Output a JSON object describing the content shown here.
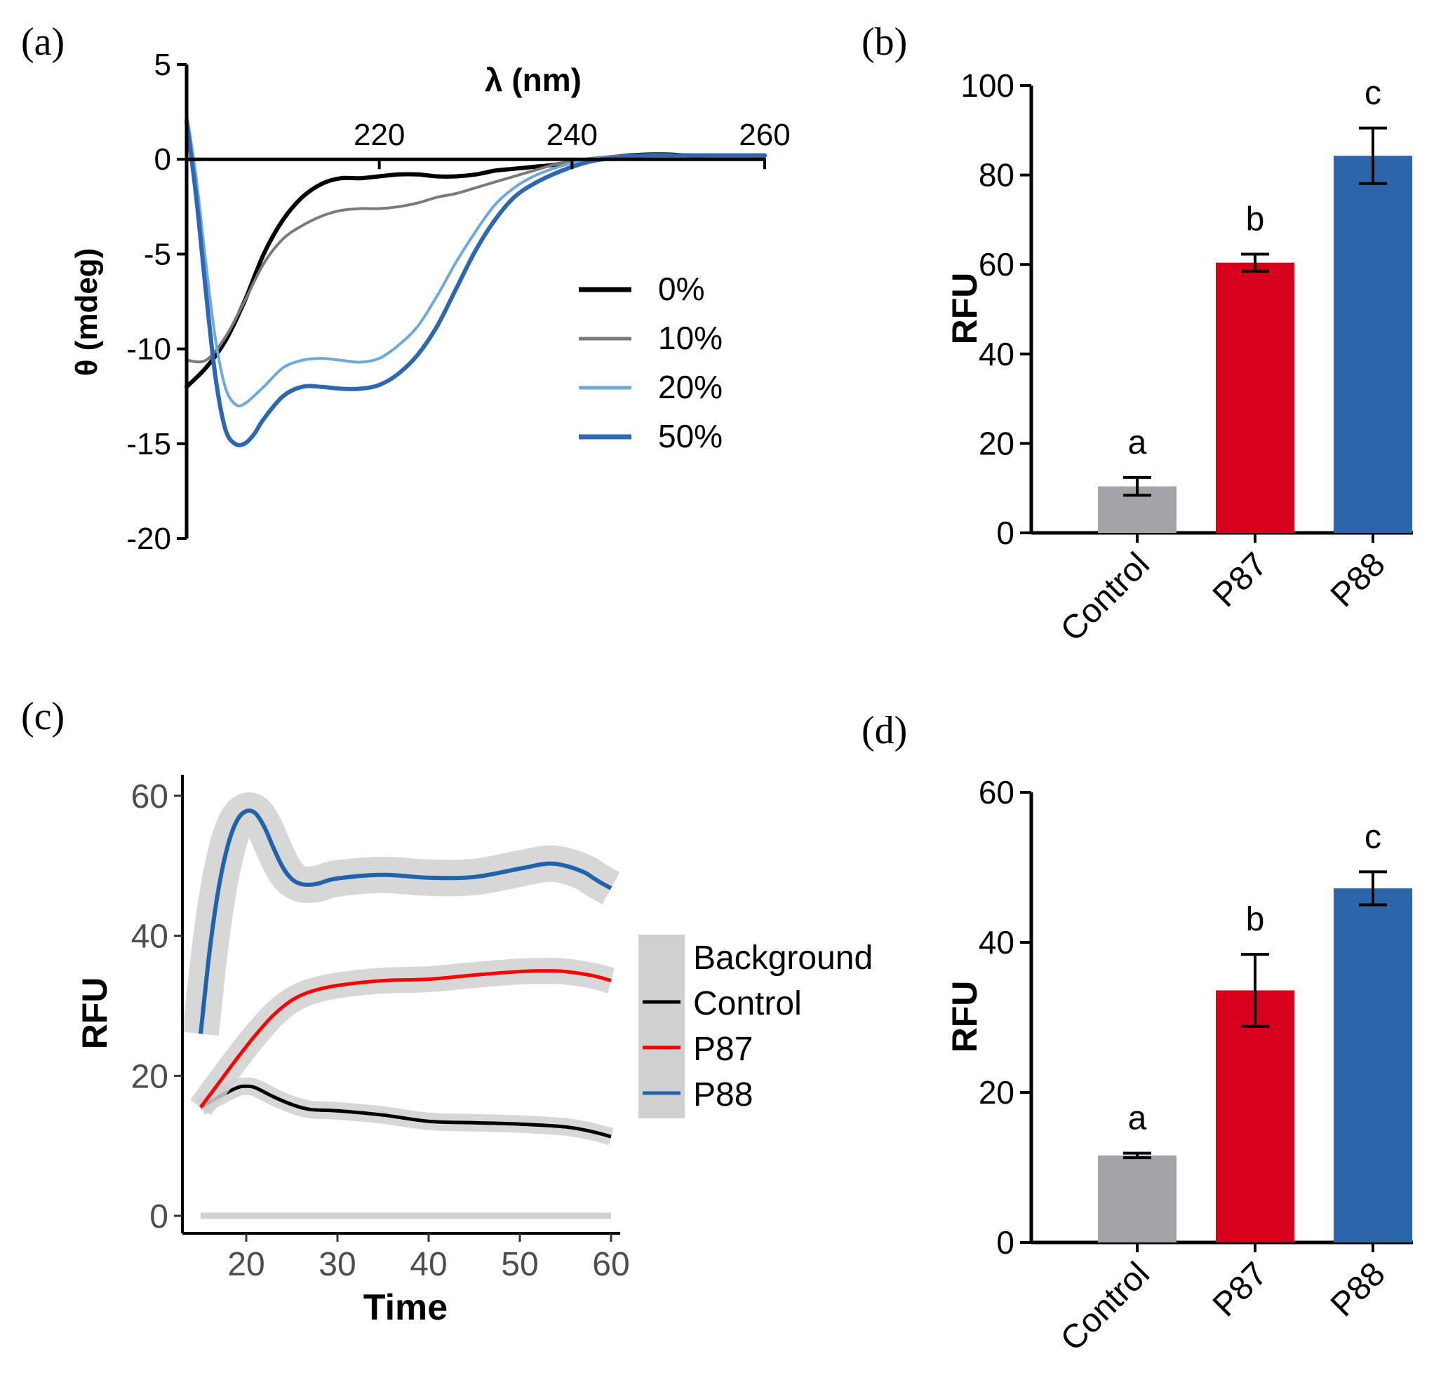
{
  "figure_title": "Four-panel figure: CD spectra and RFU measurements",
  "colors": {
    "black": "#000000",
    "gray_line": "#7a7a7a",
    "light_blue": "#6fa8dc",
    "dark_blue": "#2e67b1",
    "bar_gray": "#a3a3a8",
    "bar_red": "#d7001a",
    "bar_blue": "#2c66aa",
    "ribbon": "#d0d0d0",
    "ggplot_red": "#ff0000",
    "ggplot_blue": "#1f63ad",
    "axis_gray": "#4d4d4d"
  },
  "chart_data": [
    {
      "panel": "a",
      "panel_label": "(a)",
      "type": "line",
      "xlabel": "λ (nm)",
      "ylabel": "θ (mdeg)",
      "xlim": [
        200,
        260
      ],
      "ylim": [
        -20,
        5
      ],
      "xticks": [
        220,
        240,
        260
      ],
      "xtick_labels": [
        "220",
        "240",
        "260"
      ],
      "yticks": [
        5,
        0,
        -5,
        -10,
        -15,
        -20
      ],
      "ytick_labels": [
        "5",
        "0",
        "-5",
        "-10",
        "-15",
        "-20"
      ],
      "legend_position": "center-right",
      "series": [
        {
          "name": "0%",
          "color": "#000000",
          "width": 6,
          "x": [
            200,
            202,
            204,
            206,
            208,
            210,
            212,
            214,
            216,
            218,
            220,
            222,
            224,
            226,
            228,
            230,
            232,
            234,
            236,
            238,
            240,
            242,
            244,
            246,
            248,
            250,
            252,
            254,
            256,
            258,
            260
          ],
          "y": [
            -12.0,
            -11.0,
            -9.6,
            -7.5,
            -5.0,
            -3.2,
            -2.0,
            -1.3,
            -1.0,
            -1.0,
            -0.9,
            -0.8,
            -0.8,
            -0.9,
            -0.9,
            -0.8,
            -0.6,
            -0.5,
            -0.4,
            -0.3,
            -0.15,
            -0.05,
            0.1,
            0.2,
            0.25,
            0.25,
            0.2,
            0.2,
            0.2,
            0.2,
            0.2
          ]
        },
        {
          "name": "10%",
          "color": "#7a7a7a",
          "width": 4,
          "x": [
            200,
            202,
            204,
            206,
            208,
            210,
            212,
            214,
            216,
            218,
            220,
            222,
            224,
            226,
            228,
            230,
            232,
            234,
            236,
            238,
            240,
            242,
            244,
            246,
            248,
            250,
            252,
            254,
            256,
            258,
            260
          ],
          "y": [
            -10.6,
            -10.6,
            -9.4,
            -7.5,
            -5.5,
            -4.2,
            -3.5,
            -3.0,
            -2.7,
            -2.6,
            -2.6,
            -2.5,
            -2.3,
            -2.0,
            -1.8,
            -1.5,
            -1.2,
            -0.9,
            -0.6,
            -0.3,
            -0.1,
            0.05,
            0.15,
            0.2,
            0.25,
            0.25,
            0.2,
            0.2,
            0.2,
            0.2,
            0.2
          ]
        },
        {
          "name": "20%",
          "color": "#6fa8dc",
          "width": 4,
          "x": [
            200,
            201,
            202,
            203,
            204,
            205,
            206,
            208,
            210,
            212,
            214,
            216,
            218,
            220,
            222,
            224,
            226,
            228,
            230,
            232,
            234,
            236,
            238,
            240,
            242,
            244,
            246,
            248,
            250,
            252,
            254,
            256,
            258,
            260
          ],
          "y": [
            2.4,
            -1.0,
            -5.5,
            -9.5,
            -12.0,
            -12.9,
            -12.9,
            -12.0,
            -11.0,
            -10.6,
            -10.5,
            -10.6,
            -10.7,
            -10.5,
            -9.8,
            -8.8,
            -7.2,
            -5.4,
            -3.8,
            -2.4,
            -1.5,
            -0.9,
            -0.5,
            -0.2,
            0.0,
            0.1,
            0.15,
            0.2,
            0.2,
            0.2,
            0.2,
            0.2,
            0.2,
            0.2
          ]
        },
        {
          "name": "50%",
          "color": "#2e67b1",
          "width": 6,
          "x": [
            200,
            201,
            202,
            203,
            204,
            205,
            206,
            207,
            208,
            210,
            212,
            214,
            216,
            218,
            220,
            222,
            224,
            226,
            228,
            230,
            232,
            234,
            236,
            238,
            240,
            242,
            244,
            246,
            248,
            250,
            252,
            254,
            256,
            258,
            260
          ],
          "y": [
            2.0,
            -2.0,
            -7.0,
            -11.5,
            -14.2,
            -15.0,
            -15.0,
            -14.5,
            -13.7,
            -12.5,
            -12.0,
            -12.0,
            -12.1,
            -12.1,
            -11.9,
            -11.3,
            -10.3,
            -8.8,
            -6.8,
            -4.8,
            -3.2,
            -2.0,
            -1.3,
            -0.8,
            -0.4,
            -0.1,
            0.05,
            0.15,
            0.2,
            0.2,
            0.2,
            0.2,
            0.2,
            0.2,
            0.2
          ]
        }
      ]
    },
    {
      "panel": "b",
      "panel_label": "(b)",
      "type": "bar",
      "ylabel": "RFU",
      "ylim": [
        0,
        100
      ],
      "yticks": [
        0,
        20,
        40,
        60,
        80,
        100
      ],
      "ytick_labels": [
        "0",
        "20",
        "40",
        "60",
        "80",
        "100"
      ],
      "categories": [
        "Control",
        "P87",
        "P88"
      ],
      "values": [
        10.4,
        60.4,
        84.3
      ],
      "errors": [
        2.0,
        1.9,
        6.2
      ],
      "letters": [
        "a",
        "b",
        "c"
      ],
      "bar_colors": [
        "#a3a3a8",
        "#d7001a",
        "#2c66aa"
      ]
    },
    {
      "panel": "c",
      "panel_label": "(c)",
      "type": "line",
      "xlabel": "Time",
      "ylabel": "RFU",
      "xlim": [
        13,
        61
      ],
      "ylim": [
        -2.5,
        63
      ],
      "xticks": [
        20,
        30,
        40,
        50,
        60
      ],
      "xtick_labels": [
        "20",
        "30",
        "40",
        "50",
        "60"
      ],
      "yticks": [
        0,
        20,
        40,
        60
      ],
      "ytick_labels": [
        "0",
        "20",
        "40",
        "60"
      ],
      "legend_position": "right",
      "legend_entries": [
        "Background",
        "Control",
        "P87",
        "P88"
      ],
      "series": [
        {
          "name": "Background",
          "color": "#d0d0d0",
          "width": 9,
          "band": 0,
          "x": [
            15,
            60
          ],
          "y": [
            0,
            0
          ]
        },
        {
          "name": "Control",
          "color": "#000000",
          "width": 5,
          "band": 1.0,
          "x": [
            15,
            17,
            19,
            20,
            21,
            23,
            25,
            27,
            30,
            35,
            40,
            45,
            50,
            55,
            58,
            60
          ],
          "y": [
            15.5,
            17.0,
            18.3,
            18.5,
            18.3,
            17.0,
            15.9,
            15.2,
            15.0,
            14.4,
            13.5,
            13.3,
            13.1,
            12.7,
            12.0,
            11.3
          ]
        },
        {
          "name": "P87",
          "color": "#ff0000",
          "width": 5,
          "band": 1.6,
          "x": [
            15,
            17,
            19,
            21,
            23,
            25,
            27,
            30,
            35,
            40,
            45,
            50,
            53,
            55,
            58,
            60
          ],
          "y": [
            15.5,
            19.0,
            22.5,
            25.8,
            28.7,
            30.8,
            32.0,
            32.9,
            33.6,
            33.8,
            34.4,
            34.9,
            35.0,
            34.9,
            34.3,
            33.6
          ]
        },
        {
          "name": "P88",
          "color": "#1f63ad",
          "width": 6,
          "band": 2.3,
          "x": [
            15,
            16,
            17,
            18,
            19,
            20,
            21,
            22,
            23,
            24,
            25,
            26,
            27,
            28,
            30,
            35,
            40,
            45,
            50,
            53,
            55,
            57,
            58,
            59,
            60
          ],
          "y": [
            26.0,
            38.0,
            47.0,
            53.0,
            56.5,
            57.8,
            57.5,
            55.5,
            52.5,
            49.8,
            48.1,
            47.4,
            47.3,
            47.5,
            48.2,
            48.7,
            48.3,
            48.4,
            49.6,
            50.3,
            50.0,
            49.1,
            48.3,
            47.5,
            46.8
          ]
        }
      ]
    },
    {
      "panel": "d",
      "panel_label": "(d)",
      "type": "bar",
      "ylabel": "RFU",
      "ylim": [
        0,
        60
      ],
      "yticks": [
        0,
        20,
        40,
        60
      ],
      "ytick_labels": [
        "0",
        "20",
        "40",
        "60"
      ],
      "categories": [
        "Control",
        "P87",
        "P88"
      ],
      "values": [
        11.6,
        33.6,
        47.2
      ],
      "errors": [
        0.3,
        4.8,
        2.2
      ],
      "letters": [
        "a",
        "b",
        "c"
      ],
      "bar_colors": [
        "#a3a3a8",
        "#d7001a",
        "#2c66aa"
      ]
    }
  ]
}
